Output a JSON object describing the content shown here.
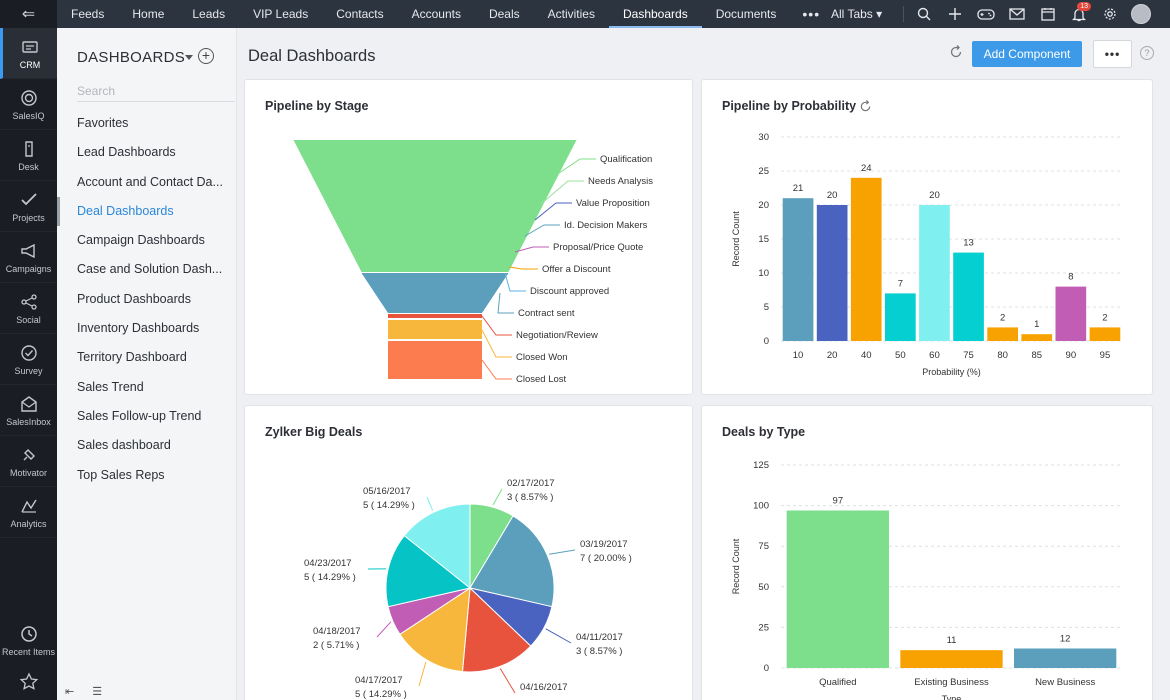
{
  "rail": {
    "items": [
      {
        "label": "CRM",
        "icon": "crm-icon"
      },
      {
        "label": "SalesIQ",
        "icon": "salesiq-icon"
      },
      {
        "label": "Desk",
        "icon": "desk-icon"
      },
      {
        "label": "Projects",
        "icon": "projects-icon"
      },
      {
        "label": "Campaigns",
        "icon": "campaigns-icon"
      },
      {
        "label": "Social",
        "icon": "social-icon"
      },
      {
        "label": "Survey",
        "icon": "survey-icon"
      },
      {
        "label": "SalesInbox",
        "icon": "salesinbox-icon"
      },
      {
        "label": "Motivator",
        "icon": "motivator-icon"
      },
      {
        "label": "Analytics",
        "icon": "analytics-icon"
      }
    ],
    "recent_items": "Recent Items"
  },
  "topnav": {
    "tabs": [
      "Feeds",
      "Home",
      "Leads",
      "VIP Leads",
      "Contacts",
      "Accounts",
      "Deals",
      "Activities",
      "Dashboards",
      "Documents"
    ],
    "active_tab": "Dashboards",
    "more": "•••",
    "all_tabs": "All Tabs ▾",
    "notification_count": "13"
  },
  "sidebar": {
    "heading": "DASHBOARDS",
    "search_placeholder": "Search",
    "items": [
      "Favorites",
      "Lead Dashboards",
      "Account and Contact Da...",
      "Deal Dashboards",
      "Campaign Dashboards",
      "Case and Solution Dash...",
      "Product Dashboards",
      "Inventory Dashboards",
      "Territory Dashboard",
      "Sales Trend",
      "Sales Follow-up Trend",
      "Sales dashboard",
      "Top Sales Reps"
    ],
    "active_item": "Deal Dashboards"
  },
  "main": {
    "title": "Deal Dashboards",
    "add_component": "Add Component",
    "more": "•••",
    "help": "?"
  },
  "cards": {
    "pipeline_stage": "Pipeline by Stage",
    "pipeline_probability": "Pipeline by Probability",
    "big_deals": "Zylker Big Deals",
    "deals_type": "Deals by Type"
  },
  "colors": {
    "accent": "#3c9ae8",
    "green": "#7ddf8b",
    "teal": "#5b9fbd",
    "blue": "#4a63c0",
    "orange": "#f8a201",
    "cyan": "#06cfd1",
    "light_cyan": "#7ff0ef",
    "purple": "#c15db5",
    "yellow": "#f6b73c",
    "red": "#e8533d",
    "salmon": "#fc7c4f"
  },
  "chart_data": [
    {
      "type": "funnel",
      "title": "Pipeline by Stage",
      "stages": [
        {
          "label": "Qualification",
          "value": 100,
          "color": "#7ddf8b"
        },
        {
          "label": "Needs Analysis",
          "value": 0,
          "color": "#9be19c"
        },
        {
          "label": "Value Proposition",
          "value": 0,
          "color": "#4a63c0"
        },
        {
          "label": "Id. Decision Makers",
          "value": 0,
          "color": "#5b9fbd"
        },
        {
          "label": "Proposal/Price Quote",
          "value": 0,
          "color": "#c15db5"
        },
        {
          "label": "Offer a Discount",
          "value": 0,
          "color": "#f8a201"
        },
        {
          "label": "Discount approved",
          "value": 0,
          "color": "#5bb2de"
        },
        {
          "label": "Contract sent",
          "value": 25,
          "color": "#5b9fbd"
        },
        {
          "label": "Negotiation/Review",
          "value": 3,
          "color": "#e8533d"
        },
        {
          "label": "Closed Won",
          "value": 12,
          "color": "#f6b73c"
        },
        {
          "label": "Closed Lost",
          "value": 24,
          "color": "#fc7c4f"
        }
      ]
    },
    {
      "type": "bar",
      "title": "Pipeline by Probability",
      "xlabel": "Probability (%)",
      "ylabel": "Record Count",
      "ylim": [
        0,
        30
      ],
      "yticks": [
        0,
        5,
        10,
        15,
        20,
        25,
        30
      ],
      "categories": [
        "10",
        "20",
        "40",
        "50",
        "60",
        "75",
        "80",
        "85",
        "90",
        "95"
      ],
      "values": [
        21,
        20,
        24,
        7,
        20,
        13,
        2,
        1,
        8,
        2
      ],
      "colors": [
        "#5b9fbd",
        "#4a63c0",
        "#f8a201",
        "#06cfd1",
        "#7ff0ef",
        "#06cfd1",
        "#f8a201",
        "#f8a201",
        "#c15db5",
        "#f8a201"
      ],
      "grid": true
    },
    {
      "type": "pie",
      "title": "Zylker Big Deals",
      "slices": [
        {
          "label": "02/17/2017",
          "value": 3,
          "pct": "3 ( 8.57% )",
          "color": "#7ddf8b"
        },
        {
          "label": "03/19/2017",
          "value": 7,
          "pct": "7 ( 20.00% )",
          "color": "#5b9fbd"
        },
        {
          "label": "04/11/2017",
          "value": 3,
          "pct": "3 ( 8.57% )",
          "color": "#4a63c0"
        },
        {
          "label": "04/16/2017",
          "value": 5,
          "pct": "",
          "color": "#e8533d"
        },
        {
          "label": "04/17/2017",
          "value": 5,
          "pct": "5 ( 14.29% )",
          "color": "#f6b73c"
        },
        {
          "label": "04/18/2017",
          "value": 2,
          "pct": "2 ( 5.71% )",
          "color": "#c15db5"
        },
        {
          "label": "04/23/2017",
          "value": 5,
          "pct": "5 ( 14.29% )",
          "color": "#06c4c6"
        },
        {
          "label": "05/16/2017",
          "value": 5,
          "pct": "5 ( 14.29% )",
          "color": "#7ff0ef"
        }
      ]
    },
    {
      "type": "bar",
      "title": "Deals by Type",
      "xlabel": "Type",
      "ylabel": "Record Count",
      "ylim": [
        0,
        125
      ],
      "yticks": [
        0,
        25,
        50,
        75,
        100,
        125
      ],
      "categories": [
        "Qualified",
        "Existing Business",
        "New Business"
      ],
      "values": [
        97,
        11,
        12
      ],
      "colors": [
        "#7ddf8b",
        "#f8a201",
        "#5b9fbd"
      ],
      "grid": true
    }
  ]
}
